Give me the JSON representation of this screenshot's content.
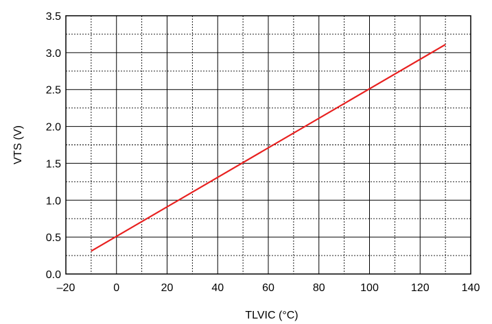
{
  "chart_data": {
    "type": "line",
    "title": "",
    "xlabel": "TLVIC (°C)",
    "ylabel": "VTS (V)",
    "xlim": [
      -20,
      140
    ],
    "ylim": [
      0,
      3.5
    ],
    "x_ticks": [
      "–20",
      "0",
      "20",
      "40",
      "60",
      "80",
      "100",
      "120",
      "140"
    ],
    "y_ticks": [
      "0.0",
      "0.5",
      "1.0",
      "1.5",
      "2.0",
      "2.5",
      "3.0",
      "3.5"
    ],
    "grid": true,
    "series": [
      {
        "color": "#e8201f",
        "x": [
          -10,
          130
        ],
        "y": [
          0.31,
          3.11
        ]
      }
    ]
  }
}
